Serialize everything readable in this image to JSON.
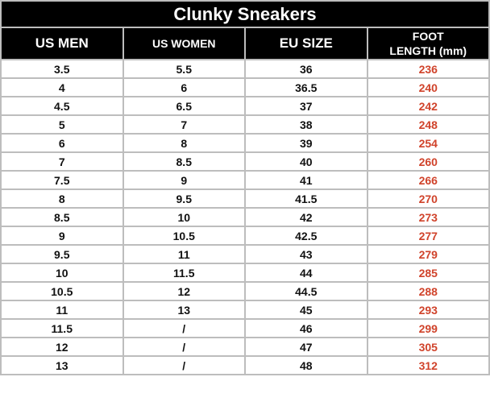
{
  "title": "Clunky Sneakers",
  "headers": [
    "US MEN",
    "US WOMEN",
    "EU SIZE",
    "FOOT LENGTH (mm)"
  ],
  "header_foot_lines": [
    "FOOT",
    "LENGTH (mm)"
  ],
  "accent_color": "#d0432b",
  "rows": [
    [
      "3.5",
      "5.5",
      "36",
      "236"
    ],
    [
      "4",
      "6",
      "36.5",
      "240"
    ],
    [
      "4.5",
      "6.5",
      "37",
      "242"
    ],
    [
      "5",
      "7",
      "38",
      "248"
    ],
    [
      "6",
      "8",
      "39",
      "254"
    ],
    [
      "7",
      "8.5",
      "40",
      "260"
    ],
    [
      "7.5",
      "9",
      "41",
      "266"
    ],
    [
      "8",
      "9.5",
      "41.5",
      "270"
    ],
    [
      "8.5",
      "10",
      "42",
      "273"
    ],
    [
      "9",
      "10.5",
      "42.5",
      "277"
    ],
    [
      "9.5",
      "11",
      "43",
      "279"
    ],
    [
      "10",
      "11.5",
      "44",
      "285"
    ],
    [
      "10.5",
      "12",
      "44.5",
      "288"
    ],
    [
      "11",
      "13",
      "45",
      "293"
    ],
    [
      "11.5",
      "/",
      "46",
      "299"
    ],
    [
      "12",
      "/",
      "47",
      "305"
    ],
    [
      "13",
      "/",
      "48",
      "312"
    ]
  ]
}
